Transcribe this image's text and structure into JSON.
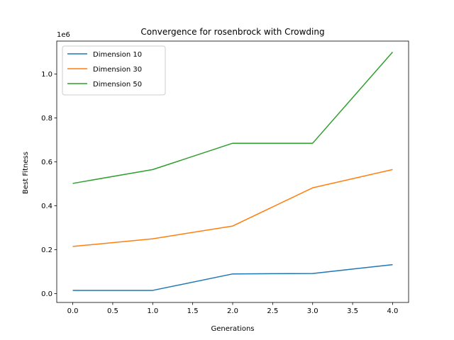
{
  "chart_data": {
    "type": "line",
    "title": "Convergence for rosenbrock with Crowding",
    "xlabel": "Generations",
    "ylabel": "Best Fitness",
    "y_offset_text": "1e6",
    "xlim": [
      -0.2,
      4.2
    ],
    "ylim": [
      -0.04,
      1.15
    ],
    "x_ticks": [
      0,
      0.5,
      1,
      1.5,
      2,
      2.5,
      3,
      3.5,
      4
    ],
    "x_tick_labels": [
      "0.0",
      "0.5",
      "1.0",
      "1.5",
      "2.0",
      "2.5",
      "3.0",
      "3.5",
      "4.0"
    ],
    "y_ticks": [
      0,
      0.2,
      0.4,
      0.6,
      0.8,
      1.0
    ],
    "y_tick_labels": [
      "0.0",
      "0.2",
      "0.4",
      "0.6",
      "0.8",
      "1.0"
    ],
    "y_scale": 1000000,
    "x": [
      0,
      1,
      2,
      3,
      4
    ],
    "grid": false,
    "legend_placement": "top-left",
    "series": [
      {
        "name": "Dimension 10",
        "color": "#1f77b4",
        "values": [
          15000,
          15000,
          90000,
          92000,
          132000
        ]
      },
      {
        "name": "Dimension 30",
        "color": "#ff7f0e",
        "values": [
          215000,
          250000,
          308000,
          482000,
          565000
        ]
      },
      {
        "name": "Dimension 50",
        "color": "#2ca02c",
        "values": [
          502000,
          565000,
          685000,
          685000,
          1100000
        ]
      }
    ]
  }
}
